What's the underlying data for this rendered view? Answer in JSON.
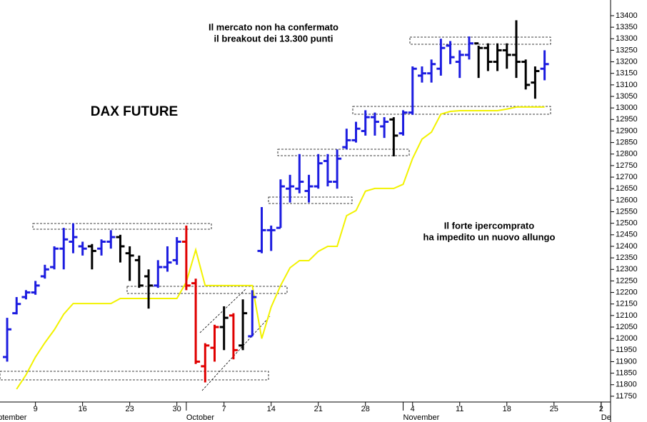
{
  "chart_data": {
    "type": "ohlc",
    "title": "DAX FUTURE",
    "annotations": [
      {
        "lines": [
          "Il mercato non ha confermato",
          "il breakout dei 13.300 punti"
        ]
      },
      {
        "lines": [
          "Il forte ipercomprato",
          "ha impedito un nuovo allungo"
        ]
      }
    ],
    "categories": [
      null,
      null,
      null,
      null,
      null,
      null,
      null,
      null,
      null,
      null,
      null,
      null,
      null,
      null,
      null,
      null,
      null,
      null,
      null,
      null,
      null,
      null,
      null,
      null,
      null,
      null,
      null,
      null,
      null,
      null,
      null,
      null,
      null,
      null,
      null,
      null,
      null,
      null,
      null,
      null,
      null,
      null,
      null,
      null,
      null,
      null,
      null,
      null,
      null,
      null,
      null,
      null,
      null,
      null,
      null,
      null,
      null,
      null
    ],
    "open": [
      11920,
      12110,
      12180,
      12200,
      12270,
      12310,
      12390,
      12420,
      12400,
      12400,
      12390,
      12420,
      12440,
      12370,
      12340,
      12270,
      12230,
      12310,
      12340,
      12420,
      12240,
      11880,
      11960,
      12050,
      12100,
      11970,
      12010,
      12380,
      12470,
      12480,
      12650,
      12650,
      12640,
      12660,
      12770,
      12680,
      12830,
      12860,
      12900,
      12960,
      12920,
      12950,
      12890,
      12980,
      13140,
      13150,
      13170,
      13270,
      13200,
      13230,
      13280,
      13260,
      13200,
      13250,
      13230,
      13200,
      13110,
      13170
    ],
    "high": [
      12090,
      12180,
      12210,
      12250,
      12320,
      12400,
      12480,
      12500,
      12420,
      12410,
      12430,
      12470,
      12450,
      12400,
      12360,
      12300,
      12340,
      12400,
      12440,
      12490,
      12260,
      11980,
      12060,
      12140,
      12110,
      12170,
      12210,
      12570,
      12490,
      12690,
      12710,
      12800,
      12710,
      12800,
      12800,
      12820,
      12910,
      12940,
      12990,
      12980,
      12960,
      12960,
      12990,
      13180,
      13180,
      13210,
      13300,
      13290,
      13250,
      13310,
      13270,
      13280,
      13280,
      13280,
      13380,
      13210,
      13180,
      13250
    ],
    "low": [
      11900,
      12105,
      12170,
      12190,
      12260,
      12300,
      12300,
      12370,
      12360,
      12300,
      12360,
      12390,
      12330,
      12250,
      12220,
      12130,
      12220,
      12290,
      12320,
      12210,
      11890,
      11810,
      11900,
      11950,
      11910,
      11950,
      12010,
      12370,
      12380,
      12480,
      12590,
      12630,
      12590,
      12650,
      12660,
      12650,
      12820,
      12850,
      12880,
      12880,
      12870,
      12790,
      12880,
      12970,
      13110,
      13110,
      13140,
      13190,
      13130,
      13210,
      13130,
      13160,
      13160,
      13170,
      13130,
      13080,
      13040,
      13120
    ],
    "close": [
      12040,
      12150,
      12200,
      12230,
      12300,
      12390,
      12430,
      12440,
      12390,
      12380,
      12420,
      12440,
      12400,
      12360,
      12230,
      12230,
      12310,
      12330,
      12420,
      12230,
      11900,
      11970,
      12050,
      12090,
      11950,
      12110,
      12180,
      12470,
      12470,
      12660,
      12660,
      12680,
      12660,
      12760,
      12680,
      12780,
      12860,
      12910,
      12960,
      12940,
      12940,
      12880,
      12980,
      13170,
      13150,
      13190,
      13260,
      13220,
      13230,
      13280,
      13260,
      13200,
      13250,
      13230,
      13200,
      13100,
      13160,
      13190
    ],
    "bar_colors": [
      "#1c1ce0",
      "#1c1ce0",
      "#1c1ce0",
      "#1c1ce0",
      "#1c1ce0",
      "#1c1ce0",
      "#1c1ce0",
      "#1c1ce0",
      "#1c1ce0",
      "#000000",
      "#1c1ce0",
      "#1c1ce0",
      "#000000",
      "#000000",
      "#000000",
      "#000000",
      "#1c1ce0",
      "#1c1ce0",
      "#1c1ce0",
      "#e00000",
      "#e00000",
      "#e00000",
      "#e00000",
      "#000000",
      "#e00000",
      "#000000",
      "#1c1ce0",
      "#1c1ce0",
      "#1c1ce0",
      "#1c1ce0",
      "#1c1ce0",
      "#1c1ce0",
      "#1c1ce0",
      "#1c1ce0",
      "#1c1ce0",
      "#1c1ce0",
      "#1c1ce0",
      "#1c1ce0",
      "#1c1ce0",
      "#1c1ce0",
      "#1c1ce0",
      "#000000",
      "#1c1ce0",
      "#1c1ce0",
      "#1c1ce0",
      "#1c1ce0",
      "#1c1ce0",
      "#1c1ce0",
      "#1c1ce0",
      "#1c1ce0",
      "#000000",
      "#000000",
      "#000000",
      "#000000",
      "#000000",
      "#000000",
      "#000000",
      "#1c1ce0"
    ],
    "line": {
      "color": "#f2f200",
      "values": [
        null,
        11781,
        11843,
        11920,
        11982,
        12038,
        12106,
        12152,
        12152,
        12152,
        12152,
        12152,
        12174,
        12174,
        12174,
        12174,
        12174,
        12174,
        12174,
        12245,
        12385,
        12230,
        12230,
        12230,
        12230,
        12230,
        12230,
        12000,
        12137,
        12230,
        12307,
        12338,
        12338,
        12378,
        12400,
        12400,
        12533,
        12555,
        12639,
        12651,
        12651,
        12651,
        12669,
        12781,
        12865,
        12895,
        12973,
        12985,
        12988,
        12988,
        12988,
        12988,
        12988,
        12995,
        13004,
        13004,
        13004,
        13004
      ]
    },
    "xlim": [
      -0.76,
      64
    ],
    "xticks": [
      {
        "value": 3,
        "label": "9"
      },
      {
        "value": 8,
        "label": "16"
      },
      {
        "value": 13,
        "label": "23"
      },
      {
        "value": 18,
        "label": "30"
      },
      {
        "value": 23,
        "label": "7"
      },
      {
        "value": 28,
        "label": "14"
      },
      {
        "value": 33,
        "label": "21"
      },
      {
        "value": 38,
        "label": "28"
      },
      {
        "value": 43,
        "label": "4"
      },
      {
        "value": 48,
        "label": "11"
      },
      {
        "value": 53,
        "label": "18"
      },
      {
        "value": 58,
        "label": "25"
      },
      {
        "value": 63,
        "label": "2"
      }
    ],
    "month_labels": [
      {
        "value": -2,
        "label": "September"
      },
      {
        "value": 19,
        "label": "October"
      },
      {
        "value": 42,
        "label": "November"
      },
      {
        "value": 63,
        "label": "December"
      }
    ],
    "ylim": [
      11725,
      13468
    ],
    "yticks": [
      11750,
      11800,
      11850,
      11900,
      11950,
      12000,
      12050,
      12100,
      12150,
      12200,
      12250,
      12300,
      12350,
      12400,
      12450,
      12500,
      12550,
      12600,
      12650,
      12700,
      12750,
      12800,
      12850,
      12900,
      12950,
      13000,
      13050,
      13100,
      13150,
      13200,
      13250,
      13300,
      13350,
      13400
    ]
  }
}
